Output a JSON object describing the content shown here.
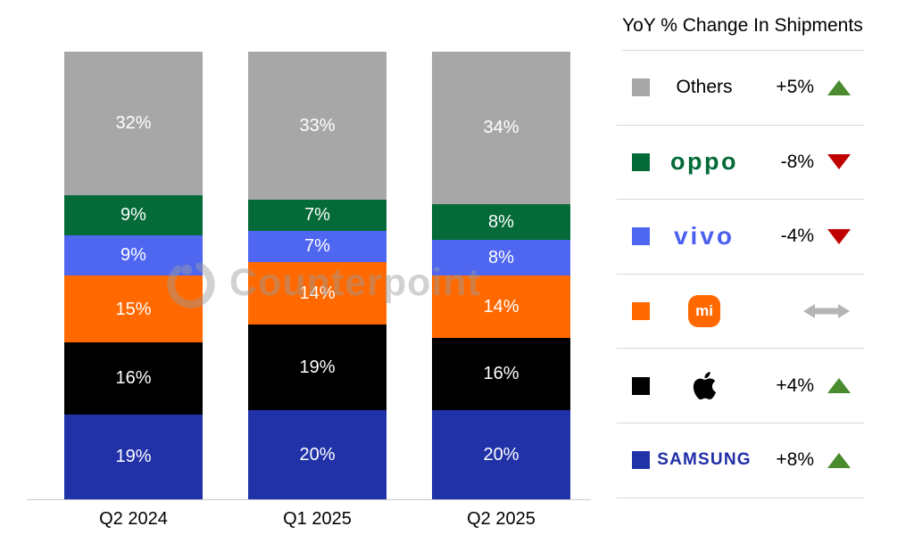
{
  "watermark": {
    "text": "Counterpoint"
  },
  "chart_data": {
    "type": "bar",
    "stacked": true,
    "title": "YoY % Change In Shipments",
    "categories": [
      "Q2 2024",
      "Q1 2025",
      "Q2 2025"
    ],
    "series": [
      {
        "name": "Samsung",
        "color": "#2132a8",
        "values": [
          19,
          20,
          20
        ]
      },
      {
        "name": "Apple",
        "color": "#000000",
        "values": [
          16,
          19,
          16
        ]
      },
      {
        "name": "Xiaomi",
        "color": "#ff6900",
        "values": [
          15,
          14,
          14
        ]
      },
      {
        "name": "vivo",
        "color": "#4f66f1",
        "values": [
          9,
          7,
          8
        ]
      },
      {
        "name": "OPPO",
        "color": "#046a38",
        "values": [
          9,
          7,
          8
        ]
      },
      {
        "name": "Others",
        "color": "#a7a7a7",
        "values": [
          32,
          33,
          34
        ]
      }
    ],
    "value_suffix": "%",
    "ylim": [
      0,
      100
    ],
    "grid": false,
    "legend_position": "right"
  },
  "legend": {
    "title": "YoY % Change In Shipments",
    "rows": [
      {
        "brand": "Others",
        "logo_text": "Others",
        "change": "+5%",
        "direction": "up",
        "color": "#a7a7a7"
      },
      {
        "brand": "OPPO",
        "logo_text": "oppo",
        "change": "-8%",
        "direction": "down",
        "color": "#046a38"
      },
      {
        "brand": "vivo",
        "logo_text": "vivo",
        "change": "-4%",
        "direction": "down",
        "color": "#4f66f1"
      },
      {
        "brand": "Xiaomi",
        "logo_text": "mi",
        "change": "",
        "direction": "flat",
        "color": "#ff6900"
      },
      {
        "brand": "Apple",
        "logo_text": "",
        "change": "+4%",
        "direction": "up",
        "color": "#000000"
      },
      {
        "brand": "Samsung",
        "logo_text": "SAMSUNG",
        "change": "+8%",
        "direction": "up",
        "color": "#2132a8"
      }
    ]
  },
  "colors": {
    "up": "#4a8b2d",
    "down": "#c00000",
    "flat": "#b5b5b5",
    "divider": "#d8d8d8",
    "axis": "#c9c9c9"
  }
}
